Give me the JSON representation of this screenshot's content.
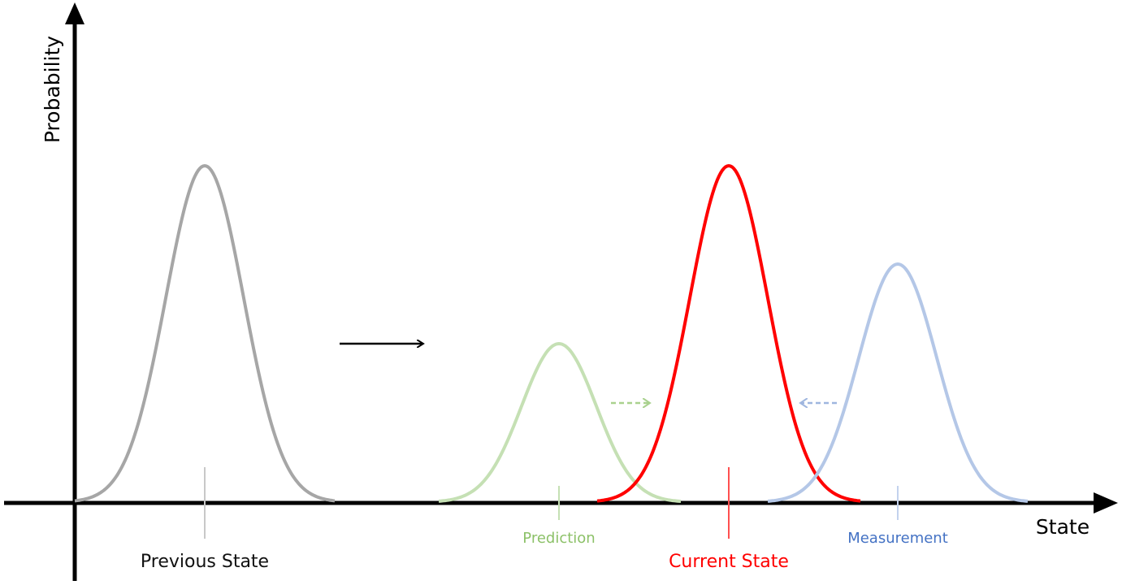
{
  "axes": {
    "y_label": "Probability",
    "x_label": "State"
  },
  "distributions": [
    {
      "label": "Previous State"
    },
    {
      "label": "Prediction"
    },
    {
      "label": "Current State"
    },
    {
      "label": "Measurement"
    }
  ]
}
